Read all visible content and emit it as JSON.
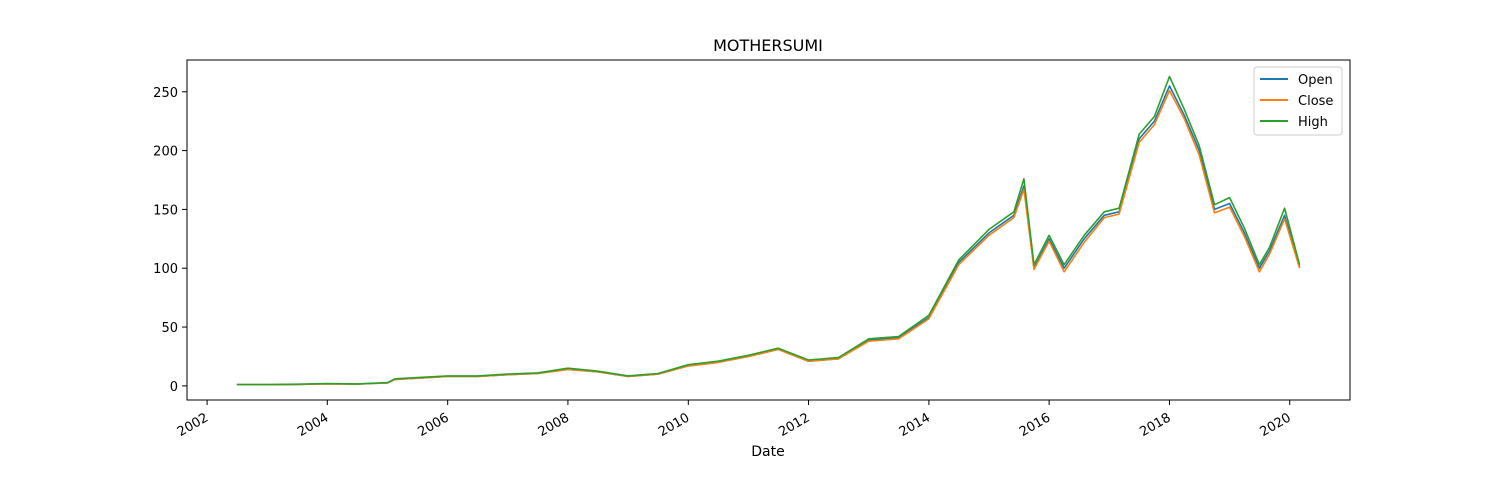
{
  "chart_data": {
    "type": "line",
    "title": "MOTHERSUMI",
    "xlabel": "Date",
    "ylabel": "",
    "xlim": [
      "2001-09-01",
      "2021-01-01"
    ],
    "ylim": [
      -12,
      277
    ],
    "x_ticks": [
      "2002",
      "2004",
      "2006",
      "2008",
      "2010",
      "2012",
      "2014",
      "2016",
      "2018",
      "2020"
    ],
    "y_ticks": [
      0,
      50,
      100,
      150,
      200,
      250
    ],
    "grid": false,
    "legend_position": "top-right",
    "series": [
      {
        "name": "Open",
        "color": "#1f77b4",
        "points": [
          [
            "2002-07-01",
            1
          ],
          [
            "2003-01-01",
            1
          ],
          [
            "2003-07-01",
            1.2
          ],
          [
            "2004-01-01",
            1.8
          ],
          [
            "2004-07-01",
            1.5
          ],
          [
            "2005-01-01",
            2.5
          ],
          [
            "2005-02-15",
            5.5
          ],
          [
            "2005-07-01",
            6.5
          ],
          [
            "2006-01-01",
            8
          ],
          [
            "2006-07-01",
            8
          ],
          [
            "2007-01-01",
            9.5
          ],
          [
            "2007-07-01",
            10.5
          ],
          [
            "2008-01-01",
            14
          ],
          [
            "2008-07-01",
            12
          ],
          [
            "2009-01-01",
            8
          ],
          [
            "2009-07-01",
            10
          ],
          [
            "2010-01-01",
            17
          ],
          [
            "2010-07-01",
            20
          ],
          [
            "2011-01-01",
            25
          ],
          [
            "2011-07-01",
            31
          ],
          [
            "2012-01-01",
            21
          ],
          [
            "2012-07-01",
            23
          ],
          [
            "2013-01-01",
            39
          ],
          [
            "2013-07-01",
            41
          ],
          [
            "2014-01-01",
            58
          ],
          [
            "2014-07-01",
            105
          ],
          [
            "2015-01-01",
            130
          ],
          [
            "2015-06-01",
            145
          ],
          [
            "2015-08-01",
            170
          ],
          [
            "2015-10-01",
            100
          ],
          [
            "2016-01-01",
            125
          ],
          [
            "2016-04-01",
            100
          ],
          [
            "2016-08-01",
            125
          ],
          [
            "2016-12-01",
            145
          ],
          [
            "2017-03-01",
            148
          ],
          [
            "2017-07-01",
            210
          ],
          [
            "2017-10-01",
            225
          ],
          [
            "2018-01-01",
            255
          ],
          [
            "2018-04-01",
            230
          ],
          [
            "2018-07-01",
            200
          ],
          [
            "2018-10-01",
            150
          ],
          [
            "2019-01-01",
            155
          ],
          [
            "2019-04-01",
            130
          ],
          [
            "2019-07-01",
            100
          ],
          [
            "2019-09-01",
            115
          ],
          [
            "2019-12-01",
            145
          ],
          [
            "2020-03-01",
            101
          ]
        ]
      },
      {
        "name": "Close",
        "color": "#ff7f0e",
        "points": [
          [
            "2002-07-01",
            1
          ],
          [
            "2003-01-01",
            1
          ],
          [
            "2003-07-01",
            1.2
          ],
          [
            "2004-01-01",
            1.8
          ],
          [
            "2004-07-01",
            1.5
          ],
          [
            "2005-01-01",
            2.5
          ],
          [
            "2005-02-15",
            5.5
          ],
          [
            "2005-07-01",
            6.5
          ],
          [
            "2006-01-01",
            8
          ],
          [
            "2006-07-01",
            8
          ],
          [
            "2007-01-01",
            9.5
          ],
          [
            "2007-07-01",
            10.5
          ],
          [
            "2008-01-01",
            14
          ],
          [
            "2008-07-01",
            12
          ],
          [
            "2009-01-01",
            8
          ],
          [
            "2009-07-01",
            10
          ],
          [
            "2010-01-01",
            17
          ],
          [
            "2010-07-01",
            20
          ],
          [
            "2011-01-01",
            25
          ],
          [
            "2011-07-01",
            31
          ],
          [
            "2012-01-01",
            21
          ],
          [
            "2012-07-01",
            23
          ],
          [
            "2013-01-01",
            38
          ],
          [
            "2013-07-01",
            40
          ],
          [
            "2014-01-01",
            57
          ],
          [
            "2014-07-01",
            103
          ],
          [
            "2015-01-01",
            128
          ],
          [
            "2015-06-01",
            143
          ],
          [
            "2015-08-01",
            167
          ],
          [
            "2015-10-01",
            99
          ],
          [
            "2016-01-01",
            123
          ],
          [
            "2016-04-01",
            97
          ],
          [
            "2016-08-01",
            122
          ],
          [
            "2016-12-01",
            143
          ],
          [
            "2017-03-01",
            146
          ],
          [
            "2017-07-01",
            207
          ],
          [
            "2017-10-01",
            222
          ],
          [
            "2018-01-01",
            251
          ],
          [
            "2018-04-01",
            227
          ],
          [
            "2018-07-01",
            196
          ],
          [
            "2018-10-01",
            147
          ],
          [
            "2019-01-01",
            152
          ],
          [
            "2019-04-01",
            127
          ],
          [
            "2019-07-01",
            97
          ],
          [
            "2019-09-01",
            112
          ],
          [
            "2019-12-01",
            142
          ],
          [
            "2020-03-01",
            100
          ]
        ]
      },
      {
        "name": "High",
        "color": "#2ca02c",
        "points": [
          [
            "2002-07-01",
            1.2
          ],
          [
            "2003-01-01",
            1.1
          ],
          [
            "2003-07-01",
            1.4
          ],
          [
            "2004-01-01",
            2
          ],
          [
            "2004-07-01",
            1.7
          ],
          [
            "2005-01-01",
            2.8
          ],
          [
            "2005-02-15",
            6
          ],
          [
            "2005-07-01",
            7
          ],
          [
            "2006-01-01",
            8.5
          ],
          [
            "2006-07-01",
            8.5
          ],
          [
            "2007-01-01",
            10
          ],
          [
            "2007-07-01",
            11
          ],
          [
            "2008-01-01",
            15
          ],
          [
            "2008-07-01",
            12.5
          ],
          [
            "2009-01-01",
            8.5
          ],
          [
            "2009-07-01",
            10.5
          ],
          [
            "2010-01-01",
            18
          ],
          [
            "2010-07-01",
            21
          ],
          [
            "2011-01-01",
            26
          ],
          [
            "2011-07-01",
            32
          ],
          [
            "2012-01-01",
            22
          ],
          [
            "2012-07-01",
            24
          ],
          [
            "2013-01-01",
            40
          ],
          [
            "2013-07-01",
            42
          ],
          [
            "2014-01-01",
            60
          ],
          [
            "2014-07-01",
            107
          ],
          [
            "2015-01-01",
            133
          ],
          [
            "2015-06-01",
            148
          ],
          [
            "2015-08-01",
            176
          ],
          [
            "2015-10-01",
            103
          ],
          [
            "2016-01-01",
            128
          ],
          [
            "2016-04-01",
            103
          ],
          [
            "2016-08-01",
            128
          ],
          [
            "2016-12-01",
            148
          ],
          [
            "2017-03-01",
            151
          ],
          [
            "2017-07-01",
            214
          ],
          [
            "2017-10-01",
            229
          ],
          [
            "2018-01-01",
            263
          ],
          [
            "2018-04-01",
            235
          ],
          [
            "2018-07-01",
            204
          ],
          [
            "2018-10-01",
            154
          ],
          [
            "2019-01-01",
            160
          ],
          [
            "2019-04-01",
            134
          ],
          [
            "2019-07-01",
            103
          ],
          [
            "2019-09-01",
            118
          ],
          [
            "2019-12-01",
            151
          ],
          [
            "2020-03-01",
            103
          ]
        ]
      }
    ]
  }
}
